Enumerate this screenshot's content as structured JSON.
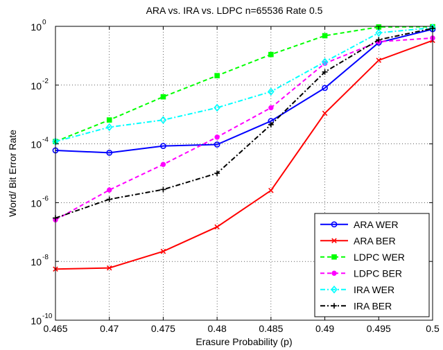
{
  "chart_data": {
    "type": "line",
    "title": "ARA vs. IRA vs. LDPC n=65536 Rate 0.5",
    "xlabel": "Erasure Probability (p)",
    "ylabel": "Word/ Bit Error Rate",
    "yscale": "log",
    "xlim": [
      0.465,
      0.5
    ],
    "ylim": [
      1e-10,
      1
    ],
    "grid": true,
    "legend_position": "bottom-right",
    "x": [
      0.465,
      0.47,
      0.475,
      0.48,
      0.485,
      0.49,
      0.495,
      0.5
    ],
    "x_tick_labels": [
      "0.465",
      "0.47",
      "0.475",
      "0.48",
      "0.485",
      "0.49",
      "0.495",
      "0.5"
    ],
    "y_ticks": [
      {
        "base": "10",
        "exp": "0",
        "value": 1
      },
      {
        "base": "10",
        "exp": "-2",
        "value": 0.01
      },
      {
        "base": "10",
        "exp": "-4",
        "value": 0.0001
      },
      {
        "base": "10",
        "exp": "-6",
        "value": 1e-06
      },
      {
        "base": "10",
        "exp": "-8",
        "value": 1e-08
      },
      {
        "base": "10",
        "exp": "-10",
        "value": 1e-10
      }
    ],
    "series": [
      {
        "name": "ARA WER",
        "color": "#0000ff",
        "dash": "solid",
        "marker": "circle",
        "values": [
          6e-05,
          5e-05,
          8.5e-05,
          9.5e-05,
          0.0006,
          0.008,
          0.28,
          0.8
        ]
      },
      {
        "name": "ARA BER",
        "color": "#ff0000",
        "dash": "solid",
        "marker": "x",
        "values": [
          5.5e-09,
          6e-09,
          2.2e-08,
          1.5e-07,
          2.6e-06,
          0.0011,
          0.07,
          0.33
        ]
      },
      {
        "name": "LDPC WER",
        "color": "#00ff00",
        "dash": "dashed",
        "marker": "square",
        "values": [
          0.00012,
          0.00065,
          0.004,
          0.021,
          0.11,
          0.48,
          0.95,
          0.97
        ]
      },
      {
        "name": "LDPC BER",
        "color": "#ff00ff",
        "dash": "dashed",
        "marker": "dot",
        "values": [
          2.6e-07,
          2.7e-06,
          2e-05,
          0.00017,
          0.0017,
          0.055,
          0.3,
          0.4
        ]
      },
      {
        "name": "IRA WER",
        "color": "#00ffff",
        "dash": "dashdot",
        "marker": "diamond",
        "values": [
          0.00012,
          0.00037,
          0.00065,
          0.0017,
          0.006,
          0.062,
          0.6,
          0.9
        ]
      },
      {
        "name": "IRA BER",
        "color": "#000000",
        "dash": "dashdot",
        "marker": "plus",
        "values": [
          3e-07,
          1.3e-06,
          2.8e-06,
          1e-05,
          0.00045,
          0.028,
          0.35,
          0.85
        ]
      }
    ]
  }
}
